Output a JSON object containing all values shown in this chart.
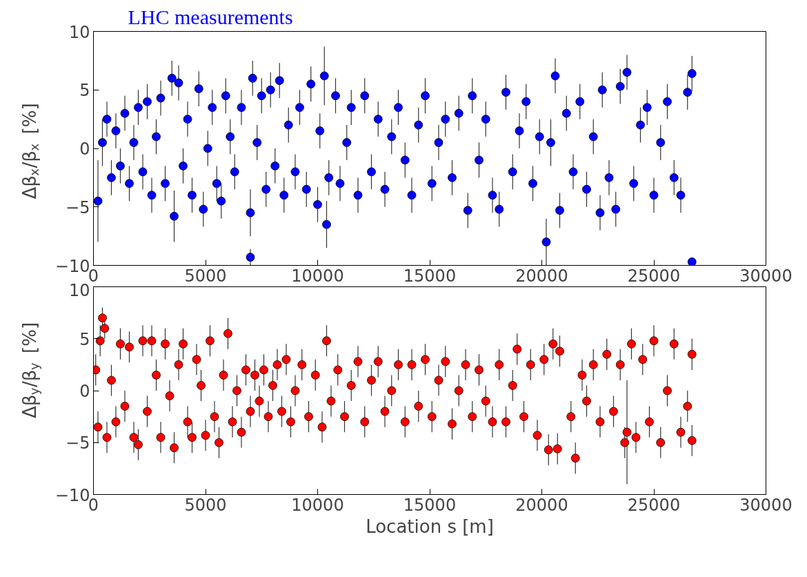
{
  "chart_data": [
    {
      "type": "scatter",
      "title": "LHC measurements",
      "ylabel": "Δβ$_{x}$/β$_{x}$ [%]",
      "xlim": [
        0,
        30000
      ],
      "xticks": [
        0,
        5000,
        10000,
        15000,
        20000,
        25000,
        30000
      ],
      "ylim": [
        -10,
        10
      ],
      "yticks": [
        -10,
        -5,
        0,
        5,
        10
      ],
      "grid": false,
      "marker": "circle",
      "x": [
        200,
        400,
        600,
        800,
        1000,
        1200,
        1400,
        1600,
        1800,
        2000,
        2200,
        2400,
        2600,
        2800,
        3000,
        3200,
        3500,
        3600,
        3800,
        4000,
        4200,
        4400,
        4700,
        4900,
        5100,
        5300,
        5500,
        5700,
        5900,
        6100,
        6300,
        6600,
        7000,
        7000,
        7100,
        7300,
        7500,
        7700,
        7900,
        8100,
        8300,
        8500,
        8700,
        9000,
        9200,
        9500,
        9700,
        10000,
        10100,
        10300,
        10400,
        10500,
        10800,
        11000,
        11300,
        11500,
        11800,
        12100,
        12400,
        12700,
        13000,
        13300,
        13600,
        13900,
        14200,
        14500,
        14800,
        15100,
        15400,
        15700,
        16000,
        16300,
        16700,
        16900,
        17200,
        17500,
        17800,
        18100,
        18400,
        18700,
        19000,
        19300,
        19600,
        19900,
        20200,
        20400,
        20600,
        20800,
        21100,
        21400,
        21700,
        22000,
        22300,
        22600,
        22700,
        23000,
        23300,
        23500,
        23800,
        24100,
        24400,
        24700,
        25000,
        25300,
        25600,
        25900,
        26200,
        26500,
        26700,
        26700
      ],
      "series": [
        {
          "color": "#0000ff",
          "values": [
            -4.5,
            0.5,
            2.5,
            -2.5,
            1.5,
            -1.5,
            3,
            -3,
            0.5,
            3.5,
            -2,
            4,
            -4,
            1,
            4.3,
            -3,
            6,
            -5.8,
            5.6,
            -1.5,
            2.5,
            -4,
            5.1,
            -5.2,
            0,
            3.5,
            -3,
            -4.5,
            4.5,
            1,
            -2,
            3.5,
            -9.3,
            -5.5,
            6,
            0.5,
            4.5,
            -3.5,
            5,
            -1.5,
            5.8,
            -4,
            2,
            -2,
            3.5,
            -3.5,
            5.5,
            -4.8,
            1.5,
            6.2,
            -6.5,
            -2.5,
            4.5,
            -3,
            0.5,
            3.5,
            -4,
            4.5,
            -2,
            2.5,
            -3.5,
            1,
            3.5,
            -1,
            -4,
            2,
            4.5,
            -3,
            0.5,
            2.5,
            -2.5,
            3,
            -5.3,
            4.5,
            -1,
            2.5,
            -4,
            -5.2,
            4.8,
            -2,
            1.5,
            4,
            -3,
            1,
            -8,
            0.5,
            6.2,
            -5.3,
            3,
            -2,
            4,
            -3.5,
            1,
            -5.5,
            5,
            -2.5,
            -5.2,
            5.3,
            6.5,
            -3,
            2,
            3.5,
            -4,
            0.5,
            4,
            -2.5,
            -4,
            4.8,
            6.4,
            -9.7
          ],
          "errors": [
            3.5,
            2,
            1.5,
            1.5,
            1.5,
            1.5,
            1.5,
            1.5,
            1.5,
            1.5,
            1.5,
            1.5,
            1.5,
            1.5,
            1.5,
            1.5,
            1.5,
            2.2,
            1.5,
            1.5,
            1.5,
            1.5,
            1.5,
            1.5,
            1.5,
            1.5,
            1.5,
            1.5,
            1.5,
            1.5,
            1.5,
            1.5,
            0.7,
            2,
            1.5,
            1.5,
            1.5,
            1.5,
            1.5,
            1.5,
            1.5,
            1.5,
            1.5,
            1.5,
            1.5,
            1.5,
            1.5,
            1.5,
            1.5,
            2.5,
            2,
            1.5,
            1.5,
            1.5,
            1.5,
            1.5,
            1.5,
            1.5,
            1.5,
            1.5,
            1.5,
            1.5,
            1.5,
            1.5,
            1.5,
            1.5,
            1.5,
            1.5,
            1.5,
            1.5,
            1.5,
            1.5,
            1.5,
            1.5,
            1.5,
            1.5,
            1.5,
            1.5,
            1.5,
            1.5,
            1.5,
            1.5,
            1.5,
            1.5,
            2,
            2,
            1.5,
            1.5,
            1.5,
            1.5,
            1.5,
            1.5,
            1.5,
            1.5,
            1.5,
            1.5,
            1.5,
            1.5,
            1.5,
            1.5,
            1.5,
            1.5,
            1.5,
            1.5,
            1.5,
            1.5,
            1.5,
            1.5,
            1.5,
            0.3
          ]
        }
      ]
    },
    {
      "type": "scatter",
      "xlabel": "Location s [m]",
      "ylabel": "Δβ$_{y}$/β$_{y}$ [%]",
      "xlim": [
        0,
        30000
      ],
      "xticks": [
        0,
        5000,
        10000,
        15000,
        20000,
        25000,
        30000
      ],
      "ylim": [
        -10,
        10
      ],
      "yticks": [
        -10,
        -5,
        0,
        5,
        10
      ],
      "grid": false,
      "marker": "circle",
      "x": [
        100,
        200,
        300,
        400,
        500,
        600,
        800,
        1000,
        1200,
        1400,
        1600,
        1800,
        2000,
        2200,
        2400,
        2600,
        2800,
        3000,
        3200,
        3400,
        3600,
        3800,
        4000,
        4200,
        4400,
        4600,
        4800,
        5000,
        5200,
        5400,
        5600,
        5800,
        6000,
        6200,
        6400,
        6600,
        6800,
        7000,
        7200,
        7400,
        7600,
        7800,
        8000,
        8200,
        8400,
        8600,
        8800,
        9000,
        9300,
        9600,
        9900,
        10200,
        10400,
        10600,
        10900,
        11200,
        11500,
        11800,
        12100,
        12400,
        12700,
        13000,
        13300,
        13600,
        13900,
        14200,
        14500,
        14800,
        15100,
        15400,
        15700,
        16000,
        16300,
        16600,
        16900,
        17200,
        17500,
        17800,
        18100,
        18400,
        18700,
        18900,
        19200,
        19500,
        19800,
        20100,
        20300,
        20500,
        20700,
        20800,
        21300,
        21500,
        21800,
        22000,
        22300,
        22600,
        22900,
        23200,
        23500,
        23700,
        23800,
        24000,
        24200,
        24500,
        24800,
        25000,
        25300,
        25600,
        25900,
        26200,
        26500,
        26700,
        26700
      ],
      "series": [
        {
          "color": "#ff0000",
          "values": [
            2,
            -3.5,
            4.8,
            7,
            6,
            -4.5,
            1,
            -3,
            4.5,
            -1.5,
            4.2,
            -4.5,
            -5.2,
            4.8,
            -2,
            4.8,
            1.5,
            -4.5,
            4.5,
            -0.5,
            -5.5,
            2.5,
            4.5,
            -3,
            -4.5,
            3,
            0.5,
            -4.3,
            4.8,
            -2.5,
            -5,
            1.5,
            5.5,
            -3,
            0,
            -4,
            2,
            -2,
            1.5,
            -1,
            2,
            -2.5,
            0.5,
            2.5,
            -2,
            3,
            -3,
            0,
            2.5,
            -2.5,
            1.5,
            -3.5,
            4.8,
            -1,
            2,
            -2.5,
            0.5,
            2.8,
            -3,
            1,
            2.8,
            -2,
            0,
            2.5,
            -3,
            2.5,
            -1.5,
            3,
            -2.5,
            1,
            2.8,
            -3.2,
            0,
            2.5,
            -2.5,
            2,
            -1,
            -3,
            2.5,
            -3,
            0.5,
            4,
            -2.5,
            2.5,
            -4.3,
            3,
            -5.7,
            4.5,
            -5.6,
            3.8,
            -2.5,
            -6.5,
            1.5,
            -1,
            2.5,
            -3,
            3.5,
            -2,
            2.5,
            -5,
            -4,
            4.5,
            -4.5,
            3,
            -3,
            4.8,
            -5,
            0,
            4.5,
            -4,
            -1.5,
            -4.8,
            3.5
          ],
          "errors": [
            1.5,
            1.5,
            1.5,
            1,
            1,
            1.5,
            1.5,
            1.5,
            1.5,
            1.5,
            1.5,
            1.5,
            1.5,
            1.5,
            1.5,
            1.5,
            1.5,
            1.5,
            1.5,
            1.5,
            1.5,
            1.5,
            1.5,
            1.5,
            1.5,
            1.5,
            1.5,
            1.5,
            1.5,
            1.5,
            1.5,
            1.5,
            1.5,
            1.5,
            1.5,
            1.5,
            1.5,
            1.5,
            1.5,
            1.5,
            1.5,
            1.5,
            1.5,
            1.5,
            1.5,
            1.5,
            1.5,
            1.5,
            1.5,
            1.5,
            1.5,
            1.5,
            1.5,
            1.5,
            1.5,
            1.5,
            1.5,
            1.5,
            1.5,
            1.5,
            1.5,
            1.5,
            1.5,
            1.5,
            1.5,
            1.5,
            1.5,
            1.5,
            1.5,
            1.5,
            1.5,
            1.5,
            1.5,
            1.5,
            1.5,
            1.5,
            1.5,
            1.5,
            1.5,
            1.5,
            1.5,
            1.5,
            1.5,
            1.5,
            1.5,
            1.5,
            1.5,
            1.5,
            1.5,
            1.5,
            1.5,
            1.5,
            1.5,
            1.5,
            1.5,
            1.5,
            1.5,
            1.5,
            1.5,
            1.5,
            5,
            1.5,
            1.5,
            1.5,
            1.5,
            1.5,
            1.5,
            1.5,
            1.5,
            1.5,
            1.5,
            1.5,
            1.5
          ]
        }
      ]
    }
  ]
}
